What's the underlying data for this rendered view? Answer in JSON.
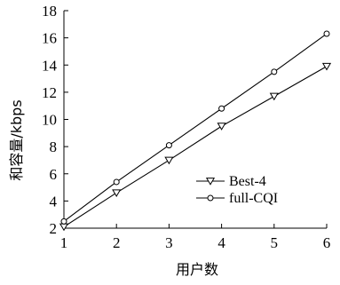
{
  "chart_data": {
    "type": "line",
    "x": [
      1,
      2,
      3,
      4,
      5,
      6
    ],
    "series": [
      {
        "name": "Best-4",
        "values": [
          2.1,
          4.6,
          7.0,
          9.5,
          11.7,
          13.9
        ],
        "marker": "triangle-down"
      },
      {
        "name": "full-CQI",
        "values": [
          2.5,
          5.4,
          8.1,
          10.8,
          13.5,
          16.3
        ],
        "marker": "circle"
      }
    ],
    "xlabel": "用户数",
    "ylabel": "和容量/kbps",
    "xlim": [
      1,
      6
    ],
    "ylim": [
      2,
      18
    ],
    "xticks": [
      1,
      2,
      3,
      4,
      5,
      6
    ],
    "yticks": [
      2,
      4,
      6,
      8,
      10,
      12,
      14,
      16,
      18
    ],
    "grid": false,
    "legend_position": "lower-right",
    "line_color": "#000000"
  }
}
